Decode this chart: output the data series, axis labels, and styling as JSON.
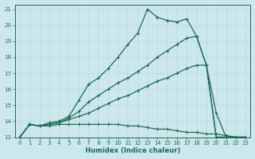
{
  "xlabel": "Humidex (Indice chaleur)",
  "bg_color": "#cde8ec",
  "grid_color": "#b8d8dc",
  "line_color": "#1a6b5a",
  "xlim": [
    -0.5,
    23.5
  ],
  "ylim": [
    13,
    21.3
  ],
  "xticks": [
    0,
    1,
    2,
    3,
    4,
    5,
    6,
    7,
    8,
    9,
    10,
    11,
    12,
    13,
    14,
    15,
    16,
    17,
    18,
    19,
    20,
    21,
    22,
    23
  ],
  "yticks": [
    13,
    14,
    15,
    16,
    17,
    18,
    19,
    20,
    21
  ],
  "series1_x": [
    0,
    1,
    2,
    3,
    4,
    5,
    6,
    7,
    8,
    9,
    10,
    11,
    12,
    13,
    14,
    15,
    16,
    17,
    18,
    19,
    20,
    21,
    22,
    23
  ],
  "series1_y": [
    13.0,
    13.8,
    13.7,
    13.7,
    13.8,
    13.8,
    13.8,
    13.8,
    13.8,
    13.8,
    13.8,
    13.7,
    13.7,
    13.6,
    13.5,
    13.5,
    13.4,
    13.3,
    13.3,
    13.2,
    13.2,
    13.1,
    13.0,
    13.0
  ],
  "series2_x": [
    0,
    1,
    2,
    3,
    4,
    5,
    6,
    7,
    8,
    9,
    10,
    11,
    12,
    13,
    14,
    15,
    16,
    17,
    18,
    19,
    20,
    21,
    22,
    23
  ],
  "series2_y": [
    13.0,
    13.8,
    13.7,
    13.8,
    13.9,
    14.1,
    14.3,
    14.5,
    14.8,
    15.1,
    15.4,
    15.6,
    15.9,
    16.2,
    16.5,
    16.7,
    17.0,
    17.3,
    17.5,
    17.5,
    13.0,
    13.0,
    13.0,
    13.0
  ],
  "series3_x": [
    0,
    1,
    2,
    3,
    4,
    5,
    6,
    7,
    8,
    9,
    10,
    11,
    12,
    13,
    14,
    15,
    16,
    17,
    18,
    19,
    20,
    21,
    22,
    23
  ],
  "series3_y": [
    13.0,
    13.8,
    13.7,
    13.8,
    13.9,
    14.2,
    14.6,
    15.2,
    15.6,
    16.0,
    16.4,
    16.7,
    17.1,
    17.5,
    18.0,
    18.4,
    18.8,
    19.2,
    19.3,
    17.5,
    13.0,
    13.0,
    13.0,
    13.0
  ],
  "series4_x": [
    0,
    1,
    2,
    3,
    4,
    5,
    6,
    7,
    8,
    9,
    10,
    11,
    12,
    13,
    14,
    15,
    16,
    17,
    18,
    19,
    20,
    21,
    22,
    23
  ],
  "series4_y": [
    13.0,
    13.8,
    13.7,
    13.9,
    14.0,
    14.3,
    15.3,
    16.3,
    16.7,
    17.3,
    18.0,
    18.8,
    19.5,
    21.0,
    20.5,
    20.3,
    20.2,
    20.4,
    19.3,
    17.5,
    14.5,
    13.0,
    13.0,
    13.0
  ]
}
